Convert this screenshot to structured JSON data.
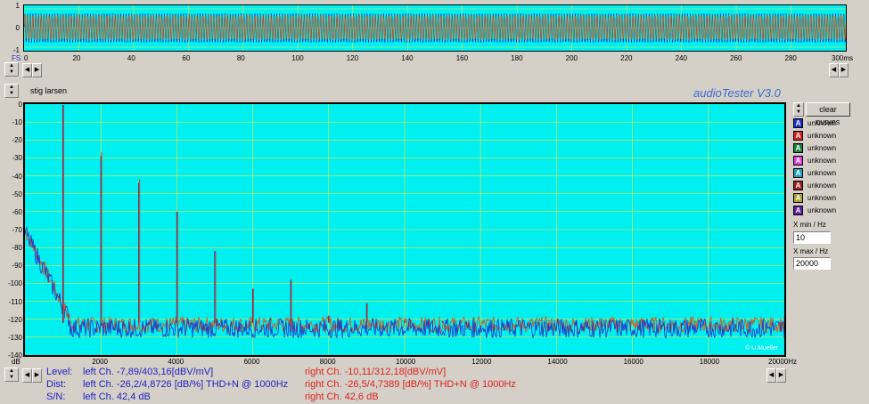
{
  "wave": {
    "y_ticks": [
      "1",
      "0",
      "-1"
    ],
    "fs_label": "FS",
    "x_ticks": [
      "0",
      "20",
      "40",
      "60",
      "80",
      "100",
      "120",
      "140",
      "160",
      "180",
      "200",
      "220",
      "240",
      "260",
      "280",
      "300ms"
    ]
  },
  "title_field": "stig larsen",
  "app_title": "audioTester  V3.0",
  "watermark": "© U.Mueller",
  "spectrum": {
    "y_unit": "dB",
    "y_ticks": [
      "0",
      "-10",
      "-20",
      "-30",
      "-40",
      "-50",
      "-60",
      "-70",
      "-80",
      "-90",
      "-100",
      "-110",
      "-120",
      "-130",
      "-140"
    ],
    "x_ticks": [
      "2000",
      "4000",
      "6000",
      "8000",
      "10000",
      "12000",
      "14000",
      "16000",
      "18000",
      "20000Hz"
    ]
  },
  "legend": {
    "clear_label": "clear curves",
    "items": [
      {
        "mark": "A",
        "color": "#2030d0",
        "label": "unknown"
      },
      {
        "mark": "A",
        "color": "#e02020",
        "label": "unknown"
      },
      {
        "mark": "A",
        "color": "#208040",
        "label": "unknown"
      },
      {
        "mark": "A",
        "color": "#e040e0",
        "label": "unknown"
      },
      {
        "mark": "A",
        "color": "#20a0c0",
        "label": "unknown"
      },
      {
        "mark": "A",
        "color": "#a02020",
        "label": "unknown"
      },
      {
        "mark": "A",
        "color": "#b0a030",
        "label": "unknown"
      },
      {
        "mark": "A",
        "color": "#6020a0",
        "label": "unknown"
      }
    ]
  },
  "xmin": {
    "label": "X min / Hz",
    "value": "10"
  },
  "xmax": {
    "label": "X max / Hz",
    "value": "20000"
  },
  "readout": {
    "level_label": "Level:",
    "dist_label": "Dist:",
    "sn_label": "S/N:",
    "left_level": "left Ch. -7,89/403,16[dBV/mV]",
    "left_dist": "left Ch. -26,2/4,8726 [dB/%] THD+N  @ 1000Hz",
    "left_sn": "left Ch. 42,4 dB",
    "right_level": "right Ch. -10,11/312,18[dBV/mV]",
    "right_dist": "right Ch. -26,5/4,7389 [dB/%] THD+N  @ 1000Hz",
    "right_sn": "right Ch. 42,6 dB"
  },
  "colors": {
    "plot_bg": "#00f0f0",
    "grid": "#e6e64a",
    "left_channel": "#2030c8",
    "right_channel": "#d85010",
    "readout_left": "#2020c0",
    "readout_right": "#e02020",
    "title": "#3a6ad0"
  },
  "chart_data": {
    "type": "line",
    "x_unit": "Hz",
    "y_unit": "dB",
    "xlim": [
      0,
      20000
    ],
    "ylim": [
      -140,
      0
    ],
    "series": [
      {
        "x": [
          1000,
          2000,
          3000,
          4000,
          5000,
          6000,
          7000,
          8000,
          9000,
          10000,
          11000
        ],
        "values": [
          -0.5,
          -29,
          -44,
          -60,
          -82,
          -103,
          -98,
          -118,
          -111,
          -121,
          -121
        ]
      },
      {
        "x": [
          1000,
          2000,
          3000,
          4000,
          5000,
          6000,
          7000,
          8000,
          9000,
          10000,
          11000
        ],
        "values": [
          -0.5,
          -27,
          -42,
          -60,
          -82,
          -103,
          -98,
          -118,
          -111,
          -121,
          -121
        ]
      }
    ],
    "noise_floor": -124
  }
}
